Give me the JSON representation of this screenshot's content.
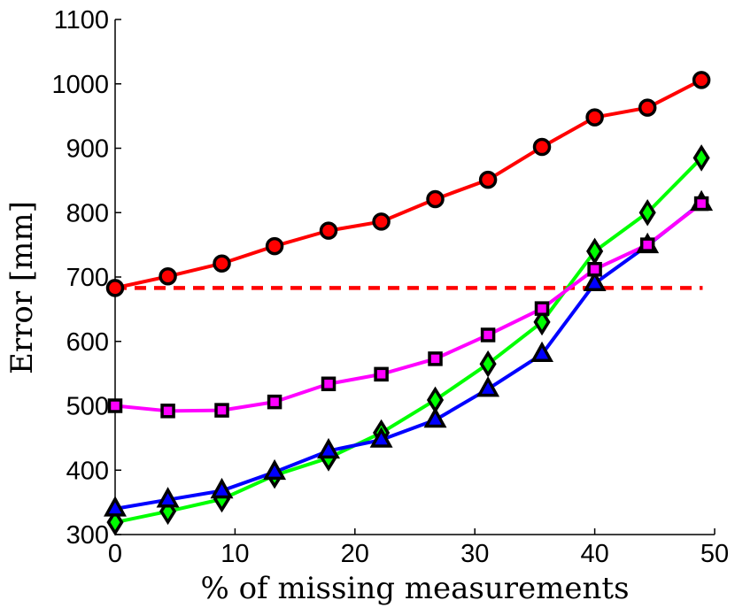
{
  "chart_data": {
    "type": "line",
    "title": "",
    "xlabel": "% of missing measurements",
    "ylabel": "Error [mm]",
    "xlim": [
      0,
      50
    ],
    "ylim": [
      300,
      1100
    ],
    "xticks": [
      0,
      10,
      20,
      30,
      40,
      50
    ],
    "yticks": [
      300,
      400,
      500,
      600,
      700,
      800,
      900,
      1000,
      1100
    ],
    "x": [
      0,
      4.4,
      8.9,
      13.3,
      17.8,
      22.2,
      26.7,
      31.1,
      35.6,
      40,
      44.4,
      48.9
    ],
    "reference_line": {
      "y": 683,
      "x_range": [
        0,
        49
      ],
      "color": "#ff0000",
      "style": "dashed"
    },
    "series": [
      {
        "name": "red-circles",
        "color": "#ff0000",
        "marker": "circle",
        "values": [
          683,
          701,
          721,
          748,
          772,
          786,
          821,
          851,
          902,
          948,
          963,
          1006
        ]
      },
      {
        "name": "magenta-squares",
        "color": "#ff00ff",
        "marker": "square",
        "values": [
          500,
          492,
          493,
          506,
          534,
          549,
          573,
          610,
          651,
          712,
          750,
          814
        ]
      },
      {
        "name": "blue-triangles",
        "color": "#0000ff",
        "marker": "triangle",
        "values": [
          340,
          354,
          368,
          397,
          430,
          447,
          478,
          526,
          580,
          690,
          749,
          815
        ]
      },
      {
        "name": "green-diamonds",
        "color": "#00ff00",
        "marker": "diamond",
        "values": [
          319,
          336,
          355,
          392,
          419,
          458,
          509,
          565,
          630,
          740,
          800,
          885
        ]
      }
    ]
  }
}
